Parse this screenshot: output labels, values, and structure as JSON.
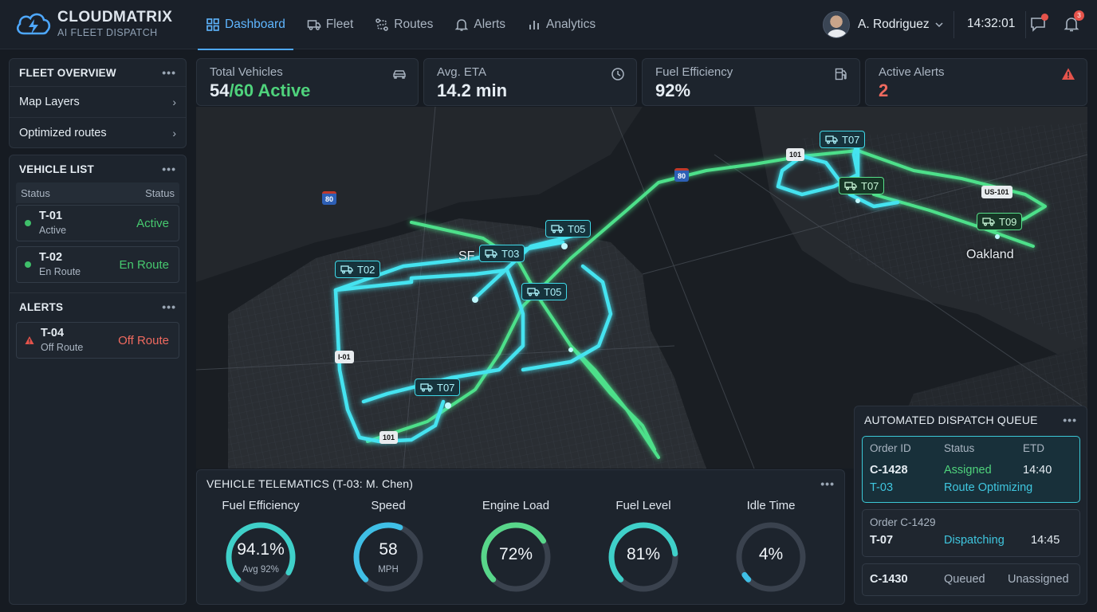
{
  "app": {
    "name": "CLOUDMATRIX",
    "subtitle": "AI FLEET DISPATCH"
  },
  "nav": [
    {
      "label": "Dashboard",
      "icon": "grid-icon",
      "active": true
    },
    {
      "label": "Fleet",
      "icon": "truck-icon"
    },
    {
      "label": "Routes",
      "icon": "route-icon"
    },
    {
      "label": "Alerts",
      "icon": "bell-icon"
    },
    {
      "label": "Analytics",
      "icon": "bar-chart-icon"
    }
  ],
  "user": {
    "name": "A. Rodriguez"
  },
  "clock": "14:32:01",
  "notifications": {
    "messages_badge": "",
    "alerts_badge": "3"
  },
  "fleet_overview": {
    "title": "FLEET OVERVIEW",
    "items": [
      {
        "label": "Map Layers"
      },
      {
        "label": "Optimized routes"
      }
    ]
  },
  "vehicle_list": {
    "title": "VEHICLE LIST",
    "col_left": "Status",
    "col_right": "Status",
    "rows": [
      {
        "id": "T-01",
        "sub": "Active",
        "status": "Active"
      },
      {
        "id": "T-02",
        "sub": "En Route",
        "status": "En Route"
      }
    ]
  },
  "alerts_panel": {
    "title": "ALERTS",
    "rows": [
      {
        "id": "T-04",
        "sub": "Off Route",
        "status": "Off Route"
      }
    ]
  },
  "kpis": [
    {
      "label": "Total Vehicles",
      "value_main": "54",
      "value_sep": "/",
      "value_accent": "60 Active",
      "icon": "car-icon"
    },
    {
      "label": "Avg. ETA",
      "value": "14.2 min",
      "icon": "clock-icon"
    },
    {
      "label": "Fuel Efficiency",
      "value": "92%",
      "icon": "fuel-pump-icon"
    },
    {
      "label": "Active Alerts",
      "value": "2",
      "icon": "warning-icon"
    }
  ],
  "map": {
    "cities": [
      "SF",
      "Oakland"
    ],
    "highway_shields": [
      "101",
      "80",
      "I-01",
      "101",
      "101",
      "80",
      "US-101"
    ],
    "vehicle_tags": [
      "T02",
      "T03",
      "T05",
      "T05",
      "T07",
      "T07",
      "T07",
      "T09"
    ]
  },
  "telematics": {
    "title": "VEHICLE TELEMATICS (T-03: M. Chen)",
    "gauges": [
      {
        "label": "Fuel Efficiency",
        "value": "94.1%",
        "sub": "Avg 92%",
        "fraction": 0.94,
        "color": "#3fd0c9"
      },
      {
        "label": "Speed",
        "value": "58",
        "sub": "MPH",
        "fraction": 0.58,
        "color": "#3fbfe6"
      },
      {
        "label": "Engine Load",
        "value": "72%",
        "sub": "",
        "fraction": 0.72,
        "color": "#58d68a"
      },
      {
        "label": "Fuel Level",
        "value": "81%",
        "sub": "",
        "fraction": 0.81,
        "color": "#3fd0c9"
      },
      {
        "label": "Idle Time",
        "value": "4%",
        "sub": "",
        "fraction": 0.04,
        "color": "#3fbfe6"
      }
    ]
  },
  "dispatch_queue": {
    "title": "AUTOMATED DISPATCH QUEUE",
    "headers": {
      "order": "Order ID",
      "status": "Status",
      "etd": "ETD"
    },
    "card1": {
      "order": "C-1428",
      "vehicle": "T-03",
      "status": "Assigned",
      "status2": "Route Optimizing",
      "etd": "14:40"
    },
    "card2": {
      "order_label": "Order C-1429",
      "vehicle": "T-07",
      "status": "Dispatching",
      "etd": "14:45"
    },
    "card3": {
      "order": "C-1430",
      "status": "Queued",
      "assignee": "Unassigned"
    }
  }
}
